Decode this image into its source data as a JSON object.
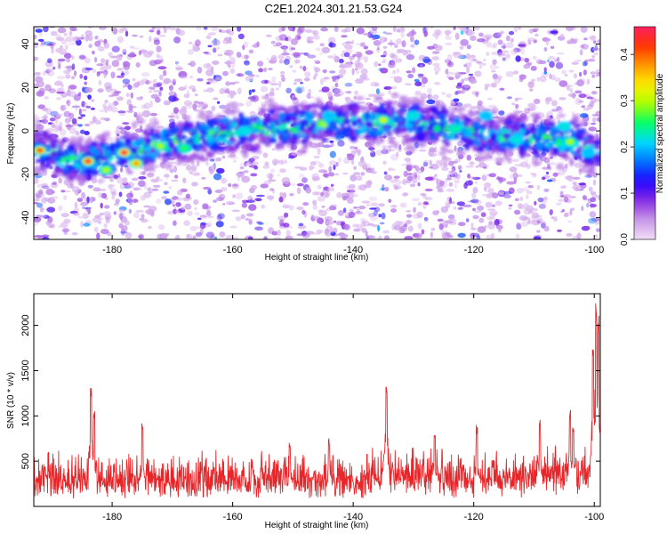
{
  "title": "C2E1.2024.301.21.53.G24",
  "chart_data": [
    {
      "type": "heatmap",
      "xlabel": "Height of straight line (km)",
      "ylabel": "Frequency (Hz)",
      "xlim": [
        -193,
        -99
      ],
      "ylim": [
        -50,
        48
      ],
      "x_ticks": [
        -180,
        -160,
        -140,
        -120,
        -100
      ],
      "x_tick_labels": [
        "-180",
        "-160",
        "-140",
        "-120",
        "-100"
      ],
      "y_ticks": [
        -40,
        -20,
        0,
        20,
        40
      ],
      "y_tick_labels": [
        "-40",
        "-20",
        "0",
        "20",
        "40"
      ],
      "colorbar": {
        "label": "Normalized spectral amplitude",
        "range": [
          0,
          0.46
        ],
        "ticks": [
          0.0,
          0.1,
          0.2,
          0.3,
          0.4
        ],
        "tick_labels": [
          "0.0",
          "0.1",
          "0.2",
          "0.3",
          "0.4"
        ],
        "colors": [
          "#f2ddf7",
          "#c89ae8",
          "#8a2be2",
          "#2200ff",
          "#0070ff",
          "#00d8ff",
          "#00ff6a",
          "#aaff00",
          "#ffee00",
          "#ff9900",
          "#ff3300",
          "#ff2060"
        ]
      },
      "ridge": {
        "description_points": [
          [
            -193,
            -8
          ],
          [
            -185,
            -14
          ],
          [
            -178,
            -10
          ],
          [
            -170,
            -5
          ],
          [
            -160,
            0
          ],
          [
            -150,
            2
          ],
          [
            -140,
            4
          ],
          [
            -130,
            4
          ],
          [
            -120,
            -1
          ],
          [
            -110,
            -4
          ],
          [
            -104,
            -4
          ],
          [
            -100,
            -10
          ]
        ],
        "hotspots": [
          [
            -192,
            -9,
            0.42
          ],
          [
            -184,
            -14,
            0.44
          ],
          [
            -181,
            -18,
            0.3
          ],
          [
            -178,
            -10,
            0.46
          ],
          [
            -176,
            -15,
            0.38
          ],
          [
            -172,
            -7,
            0.3
          ],
          [
            -168,
            -8,
            0.26
          ],
          [
            -158,
            0,
            0.22
          ],
          [
            -144,
            7,
            0.2
          ],
          [
            -135,
            5,
            0.32
          ],
          [
            -130,
            7,
            0.22
          ],
          [
            -123,
            1,
            0.24
          ],
          [
            -118,
            7,
            0.2
          ],
          [
            -113,
            -4,
            0.22
          ],
          [
            -105,
            2,
            0.22
          ],
          [
            -104,
            -5,
            0.3
          ],
          [
            -101,
            -10,
            0.2
          ]
        ]
      }
    },
    {
      "type": "line",
      "xlabel": "Height of straight line (km)",
      "ylabel": "SNR (10 * v/v)",
      "xlim": [
        -193,
        -99
      ],
      "ylim": [
        0,
        2350
      ],
      "x_ticks": [
        -180,
        -160,
        -140,
        -120,
        -100
      ],
      "x_tick_labels": [
        "-180",
        "-160",
        "-140",
        "-120",
        "-100"
      ],
      "y_ticks": [
        500,
        1000,
        1500,
        2000
      ],
      "y_tick_labels": [
        "500",
        "1000",
        "1500",
        "2000"
      ],
      "series": [
        {
          "color": "#e8262a",
          "baseline": 260,
          "noise_amplitude": 320,
          "peaks": [
            [
              -183.5,
              1330
            ],
            [
              -183,
              1050
            ],
            [
              -175,
              930
            ],
            [
              -150.5,
              700
            ],
            [
              -144,
              780
            ],
            [
              -134.5,
              1420
            ],
            [
              -126.5,
              850
            ],
            [
              -119.5,
              920
            ],
            [
              -109,
              970
            ],
            [
              -104,
              1100
            ],
            [
              -103.5,
              950
            ],
            [
              -100.2,
              1780
            ],
            [
              -99.7,
              2300
            ],
            [
              -99.3,
              2150
            ]
          ]
        }
      ]
    }
  ]
}
